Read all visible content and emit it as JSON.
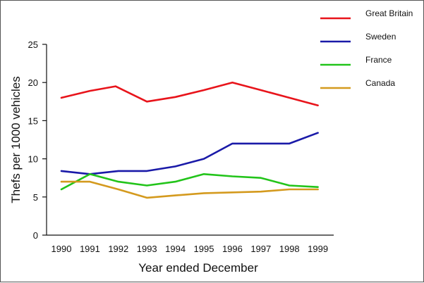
{
  "chart_data": {
    "type": "line",
    "title": "",
    "xlabel": "Year ended December",
    "ylabel": "Thefs per 1000 vehicles",
    "categories": [
      "1990",
      "1991",
      "1992",
      "1993",
      "1994",
      "1995",
      "1996",
      "1997",
      "1998",
      "1999"
    ],
    "ylim": [
      0,
      25
    ],
    "yticks": [
      "0",
      "5",
      "10",
      "15",
      "20",
      "25"
    ],
    "grid": false,
    "legend_position": "top-right",
    "series": [
      {
        "name": "Great Britain",
        "color": "#e8141b",
        "points": [
          {
            "x": 1990,
            "y": 18.0
          },
          {
            "x": 1991,
            "y": 18.9
          },
          {
            "x": 1991.9,
            "y": 19.5
          },
          {
            "x": 1993,
            "y": 17.5
          },
          {
            "x": 1994,
            "y": 18.1
          },
          {
            "x": 1995,
            "y": 19.0
          },
          {
            "x": 1996,
            "y": 20.0
          },
          {
            "x": 1997,
            "y": 19.0
          },
          {
            "x": 1998,
            "y": 18.0
          },
          {
            "x": 1999,
            "y": 17.0
          }
        ]
      },
      {
        "name": "Sweden",
        "color": "#1a1aa8",
        "points": [
          {
            "x": 1990,
            "y": 8.4
          },
          {
            "x": 1991,
            "y": 8.0
          },
          {
            "x": 1992,
            "y": 8.4
          },
          {
            "x": 1993,
            "y": 8.4
          },
          {
            "x": 1994,
            "y": 9.0
          },
          {
            "x": 1995,
            "y": 10.0
          },
          {
            "x": 1996,
            "y": 12.0
          },
          {
            "x": 1997,
            "y": 12.0
          },
          {
            "x": 1998,
            "y": 12.0
          },
          {
            "x": 1999,
            "y": 13.4
          }
        ]
      },
      {
        "name": "France",
        "color": "#22c41a",
        "points": [
          {
            "x": 1990,
            "y": 6.0
          },
          {
            "x": 1991,
            "y": 8.0
          },
          {
            "x": 1992,
            "y": 7.0
          },
          {
            "x": 1993,
            "y": 6.5
          },
          {
            "x": 1994,
            "y": 7.0
          },
          {
            "x": 1995,
            "y": 8.0
          },
          {
            "x": 1996,
            "y": 7.7
          },
          {
            "x": 1997,
            "y": 7.5
          },
          {
            "x": 1998,
            "y": 6.5
          },
          {
            "x": 1999,
            "y": 6.3
          }
        ]
      },
      {
        "name": "Canada",
        "color": "#d49a1e",
        "points": [
          {
            "x": 1990,
            "y": 7.0
          },
          {
            "x": 1991,
            "y": 7.0
          },
          {
            "x": 1992,
            "y": 6.0
          },
          {
            "x": 1993,
            "y": 4.9
          },
          {
            "x": 1994,
            "y": 5.2
          },
          {
            "x": 1995,
            "y": 5.5
          },
          {
            "x": 1996,
            "y": 5.6
          },
          {
            "x": 1997,
            "y": 5.7
          },
          {
            "x": 1998,
            "y": 6.0
          },
          {
            "x": 1999,
            "y": 6.0
          }
        ]
      }
    ]
  }
}
